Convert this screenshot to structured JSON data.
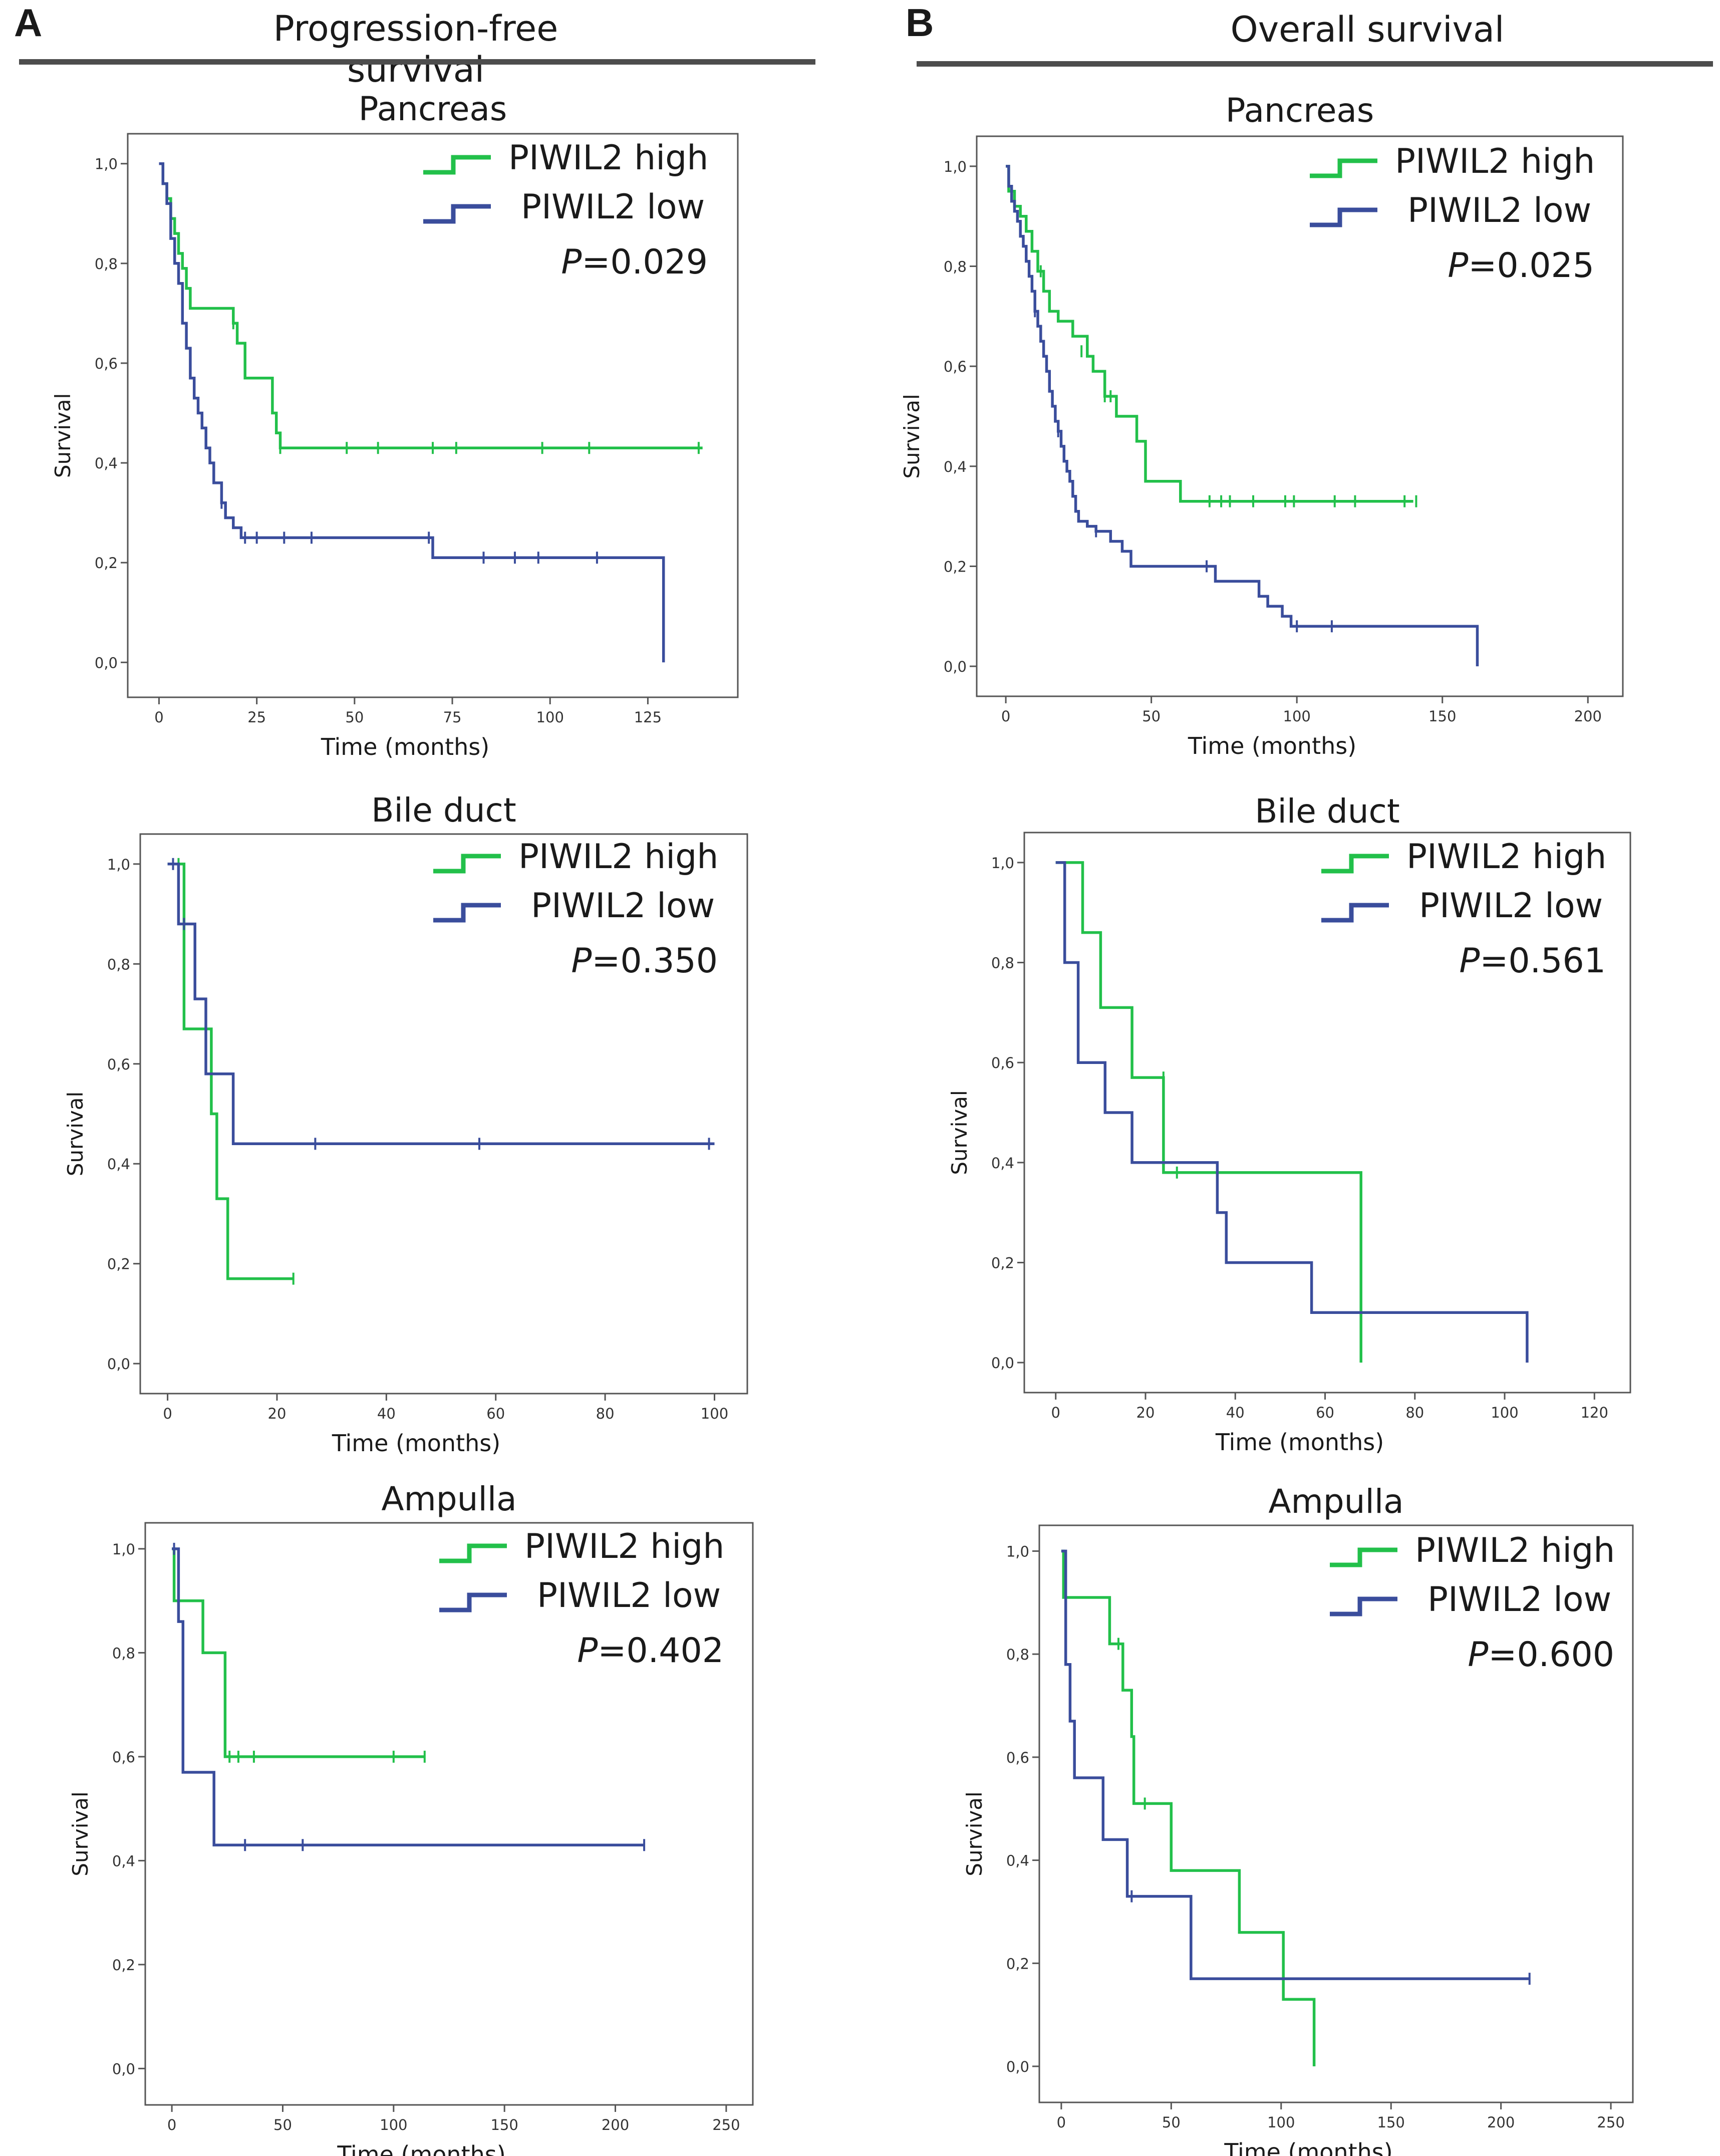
{
  "figure": {
    "panels": [
      {
        "letter": "A",
        "title": "Progression-free survival"
      },
      {
        "letter": "B",
        "title": "Overall survival"
      }
    ]
  },
  "colors": {
    "high": "#22c04a",
    "low": "#3a4d9c",
    "frame": "#555555",
    "text": "#1a1a1a"
  },
  "legend": {
    "high_label": "PIWIL2 high",
    "low_label": "PIWIL2 low"
  },
  "chart_data": [
    {
      "id": "pfs-pancreas",
      "type": "line",
      "subtype": "kaplan-meier",
      "panel": "A",
      "title": "Pancreas",
      "xlabel": "Time (months)",
      "ylabel": "Survival",
      "xlim": [
        -8,
        148
      ],
      "ylim": [
        -0.07,
        1.06
      ],
      "xticks": [
        0,
        25,
        50,
        75,
        100,
        125
      ],
      "yticks": [
        "0,0",
        "0,2",
        "0,4",
        "0,6",
        "0,8",
        "1,0"
      ],
      "p_label": "P",
      "p_value": "=0.029",
      "series": [
        {
          "name": "PIWIL2 high",
          "color": "#22c04a",
          "x": [
            0,
            1,
            2,
            3,
            4,
            5,
            6,
            7,
            8,
            19,
            20,
            22,
            29,
            30,
            31,
            139
          ],
          "y": [
            1.0,
            0.96,
            0.93,
            0.89,
            0.86,
            0.82,
            0.79,
            0.75,
            0.71,
            0.68,
            0.64,
            0.57,
            0.5,
            0.46,
            0.43,
            0.43
          ],
          "censor_x": [
            19,
            31,
            48,
            56,
            70,
            76,
            98,
            110,
            138
          ],
          "censor_y": [
            0.68,
            0.43,
            0.43,
            0.43,
            0.43,
            0.43,
            0.43,
            0.43,
            0.43
          ]
        },
        {
          "name": "PIWIL2 low",
          "color": "#3a4d9c",
          "x": [
            0,
            1,
            2,
            3,
            4,
            5,
            6,
            7,
            8,
            9,
            10,
            11,
            12,
            13,
            14,
            16,
            17,
            19,
            21,
            70,
            129,
            129
          ],
          "y": [
            1.0,
            0.96,
            0.92,
            0.85,
            0.8,
            0.76,
            0.68,
            0.63,
            0.57,
            0.53,
            0.5,
            0.47,
            0.43,
            0.4,
            0.36,
            0.32,
            0.29,
            0.27,
            0.25,
            0.21,
            0.21,
            0.0
          ],
          "censor_x": [
            16,
            22,
            25,
            32,
            39,
            69,
            83,
            91,
            97,
            112
          ],
          "censor_y": [
            0.32,
            0.25,
            0.25,
            0.25,
            0.25,
            0.25,
            0.21,
            0.21,
            0.21,
            0.21
          ]
        }
      ]
    },
    {
      "id": "os-pancreas",
      "type": "line",
      "subtype": "kaplan-meier",
      "panel": "B",
      "title": "Pancreas",
      "xlabel": "Time (months)",
      "ylabel": "Survival",
      "xlim": [
        -10,
        212
      ],
      "ylim": [
        -0.06,
        1.06
      ],
      "xticks": [
        0,
        50,
        100,
        150,
        200
      ],
      "yticks": [
        "0,0",
        "0,2",
        "0,4",
        "0,6",
        "0,8",
        "1,0"
      ],
      "p_label": "P",
      "p_value": "=0.025",
      "series": [
        {
          "name": "PIWIL2 high",
          "color": "#22c04a",
          "x": [
            0,
            1,
            3,
            5,
            7,
            9,
            11,
            13,
            15,
            18,
            23,
            28,
            30,
            34,
            38,
            45,
            48,
            60,
            140
          ],
          "y": [
            1.0,
            0.95,
            0.92,
            0.9,
            0.87,
            0.83,
            0.79,
            0.75,
            0.71,
            0.69,
            0.66,
            0.62,
            0.59,
            0.54,
            0.5,
            0.45,
            0.37,
            0.33,
            0.33
          ],
          "censor_x": [
            12,
            26,
            34,
            36,
            70,
            74,
            77,
            85,
            96,
            99,
            113,
            120,
            137,
            141
          ],
          "censor_y": [
            0.79,
            0.63,
            0.54,
            0.54,
            0.33,
            0.33,
            0.33,
            0.33,
            0.33,
            0.33,
            0.33,
            0.33,
            0.33,
            0.33
          ]
        },
        {
          "name": "PIWIL2 low",
          "color": "#3a4d9c",
          "x": [
            0,
            1,
            2,
            3,
            4,
            5,
            6,
            7,
            8,
            9,
            10,
            11,
            12,
            13,
            14,
            15,
            16,
            17,
            18,
            19,
            20,
            21,
            22,
            23,
            24,
            25,
            26,
            28,
            31,
            36,
            40,
            43,
            72,
            87,
            90,
            95,
            98,
            162,
            162
          ],
          "y": [
            1.0,
            0.96,
            0.93,
            0.91,
            0.89,
            0.86,
            0.84,
            0.81,
            0.78,
            0.75,
            0.71,
            0.68,
            0.65,
            0.62,
            0.59,
            0.55,
            0.52,
            0.49,
            0.47,
            0.44,
            0.41,
            0.39,
            0.37,
            0.34,
            0.31,
            0.29,
            0.29,
            0.28,
            0.27,
            0.25,
            0.23,
            0.2,
            0.17,
            0.14,
            0.12,
            0.1,
            0.08,
            0.08,
            0.0
          ],
          "censor_x": [
            10,
            18,
            31,
            69,
            100,
            112
          ],
          "censor_y": [
            0.71,
            0.47,
            0.27,
            0.2,
            0.08,
            0.08
          ]
        }
      ]
    },
    {
      "id": "pfs-bile-duct",
      "type": "line",
      "subtype": "kaplan-meier",
      "panel": "A",
      "title": "Bile duct",
      "xlabel": "Time (months)",
      "ylabel": "Survival",
      "xlim": [
        -5,
        106
      ],
      "ylim": [
        -0.06,
        1.06
      ],
      "xticks": [
        0,
        20,
        40,
        60,
        80,
        100
      ],
      "yticks": [
        "0,0",
        "0,2",
        "0,4",
        "0,6",
        "0,8",
        "1,0"
      ],
      "p_label": "P",
      "p_value": "=0.350",
      "series": [
        {
          "name": "PIWIL2 high",
          "color": "#22c04a",
          "x": [
            0,
            3,
            8,
            9,
            11,
            23
          ],
          "y": [
            1.0,
            0.67,
            0.5,
            0.33,
            0.17,
            0.17
          ],
          "censor_x": [
            2,
            23
          ],
          "censor_y": [
            1.0,
            0.17
          ]
        },
        {
          "name": "PIWIL2 low",
          "color": "#3a4d9c",
          "x": [
            0,
            2,
            5,
            7,
            12,
            100
          ],
          "y": [
            1.0,
            0.88,
            0.73,
            0.58,
            0.44,
            0.44
          ],
          "censor_x": [
            1,
            3,
            27,
            57,
            99
          ],
          "censor_y": [
            1.0,
            0.88,
            0.44,
            0.44,
            0.44
          ]
        }
      ]
    },
    {
      "id": "os-bile-duct",
      "type": "line",
      "subtype": "kaplan-meier",
      "panel": "B",
      "title": "Bile duct",
      "xlabel": "Time (months)",
      "ylabel": "Survival",
      "xlim": [
        -7,
        128
      ],
      "ylim": [
        -0.06,
        1.06
      ],
      "xticks": [
        0,
        20,
        40,
        60,
        80,
        100,
        120
      ],
      "yticks": [
        "0,0",
        "0,2",
        "0,4",
        "0,6",
        "0,8",
        "1,0"
      ],
      "p_label": "P",
      "p_value": "=0.561",
      "series": [
        {
          "name": "PIWIL2 high",
          "color": "#22c04a",
          "x": [
            0,
            6,
            10,
            17,
            24,
            68,
            68
          ],
          "y": [
            1.0,
            0.86,
            0.71,
            0.57,
            0.38,
            0.38,
            0.0
          ],
          "censor_x": [
            24,
            27
          ],
          "censor_y": [
            0.57,
            0.38
          ]
        },
        {
          "name": "PIWIL2 low",
          "color": "#3a4d9c",
          "x": [
            0,
            2,
            5,
            11,
            17,
            36,
            38,
            57,
            105,
            105
          ],
          "y": [
            1.0,
            0.8,
            0.6,
            0.5,
            0.4,
            0.3,
            0.2,
            0.1,
            0.1,
            0.0
          ],
          "censor_x": [],
          "censor_y": []
        }
      ]
    },
    {
      "id": "pfs-ampulla",
      "type": "line",
      "subtype": "kaplan-meier",
      "panel": "A",
      "title": "Ampulla",
      "xlabel": "Time (months)",
      "ylabel": "Survival",
      "xlim": [
        -12,
        262
      ],
      "ylim": [
        -0.07,
        1.05
      ],
      "xticks": [
        0,
        50,
        100,
        150,
        200,
        250
      ],
      "yticks": [
        "0,0",
        "0,2",
        "0,4",
        "0,6",
        "0,8",
        "1,0"
      ],
      "p_label": "P",
      "p_value": "=0.402",
      "series": [
        {
          "name": "PIWIL2 high",
          "color": "#22c04a",
          "x": [
            0,
            1,
            14,
            24,
            114
          ],
          "y": [
            1.0,
            0.9,
            0.8,
            0.6,
            0.6
          ],
          "censor_x": [
            26,
            30,
            37,
            100,
            114
          ],
          "censor_y": [
            0.6,
            0.6,
            0.6,
            0.6,
            0.6
          ]
        },
        {
          "name": "PIWIL2 low",
          "color": "#3a4d9c",
          "x": [
            0,
            3,
            5,
            19,
            213
          ],
          "y": [
            1.0,
            0.86,
            0.57,
            0.43,
            0.43
          ],
          "censor_x": [
            1,
            33,
            59,
            213
          ],
          "censor_y": [
            1.0,
            0.43,
            0.43,
            0.43
          ]
        }
      ]
    },
    {
      "id": "os-ampulla",
      "type": "line",
      "subtype": "kaplan-meier",
      "panel": "B",
      "title": "Ampulla",
      "xlabel": "Time (months)",
      "ylabel": "Survival",
      "xlim": [
        -10,
        260
      ],
      "ylim": [
        -0.07,
        1.05
      ],
      "xticks": [
        0,
        50,
        100,
        150,
        200,
        250
      ],
      "yticks": [
        "0,0",
        "0,2",
        "0,4",
        "0,6",
        "0,8",
        "1,0"
      ],
      "p_label": "P",
      "p_value": "=0.600",
      "series": [
        {
          "name": "PIWIL2 high",
          "color": "#22c04a",
          "x": [
            0,
            1,
            22,
            28,
            32,
            33,
            50,
            81,
            101,
            115,
            115
          ],
          "y": [
            1.0,
            0.91,
            0.82,
            0.73,
            0.64,
            0.51,
            0.38,
            0.26,
            0.13,
            0.13,
            0.0
          ],
          "censor_x": [
            26,
            38
          ],
          "censor_y": [
            0.82,
            0.51
          ]
        },
        {
          "name": "PIWIL2 low",
          "color": "#3a4d9c",
          "x": [
            0,
            2,
            4,
            6,
            19,
            30,
            59,
            213
          ],
          "y": [
            1.0,
            0.78,
            0.67,
            0.56,
            0.44,
            0.33,
            0.17,
            0.17
          ],
          "censor_x": [
            32,
            213
          ],
          "censor_y": [
            0.33,
            0.17
          ]
        }
      ]
    }
  ]
}
